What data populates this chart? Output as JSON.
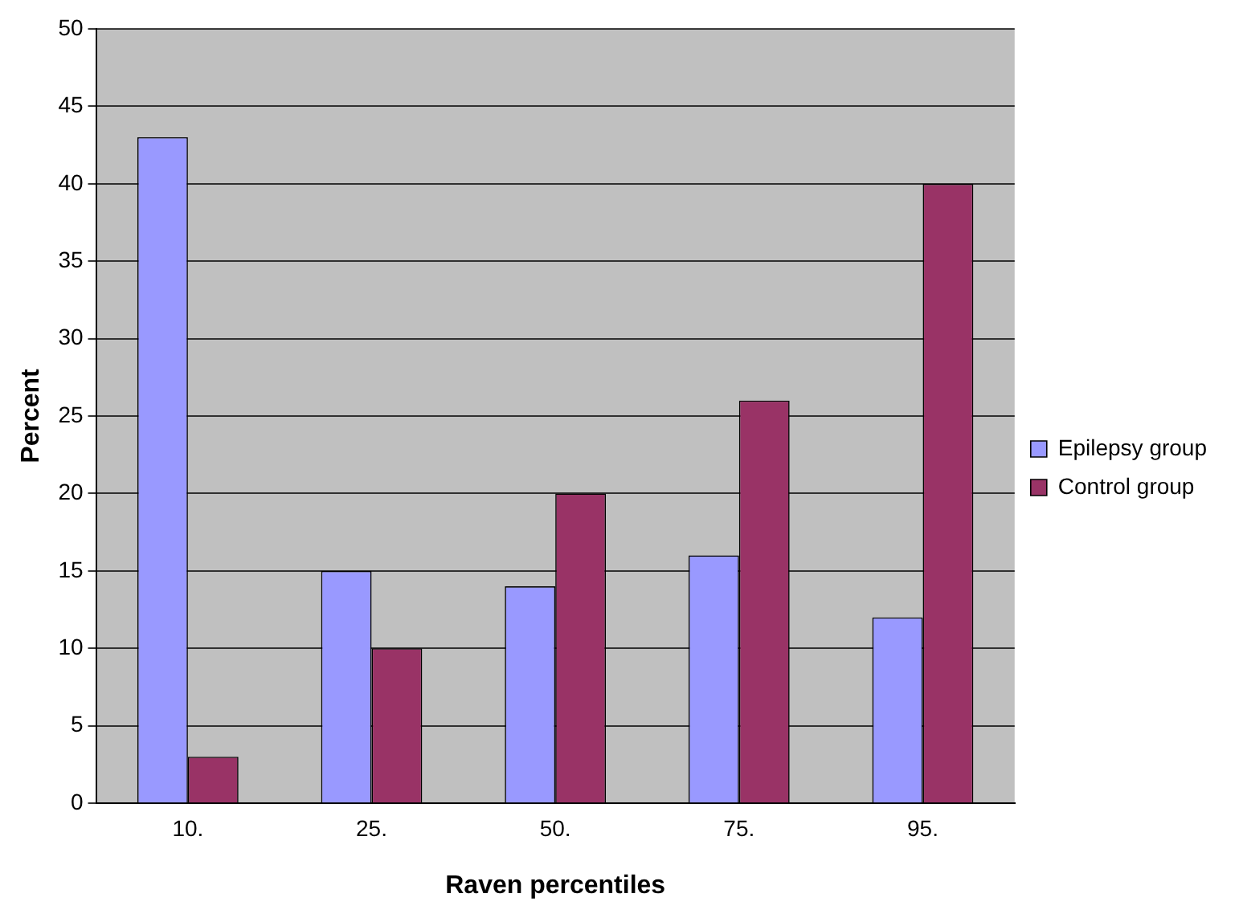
{
  "chart_data": {
    "type": "bar",
    "xlabel": "Raven percentiles",
    "ylabel": "Percent",
    "categories": [
      "10.",
      "25.",
      "50.",
      "75.",
      "95."
    ],
    "series": [
      {
        "name": "Epilepsy group",
        "color": "#9999ff",
        "values": [
          43,
          15,
          14,
          16,
          12
        ]
      },
      {
        "name": "Control group",
        "color": "#993366",
        "values": [
          3,
          10,
          20,
          26,
          40
        ]
      }
    ],
    "ylim": [
      0,
      50
    ],
    "yticks": [
      0,
      5,
      10,
      15,
      20,
      25,
      30,
      35,
      40,
      45,
      50
    ],
    "grid": "y",
    "legend": "right"
  }
}
